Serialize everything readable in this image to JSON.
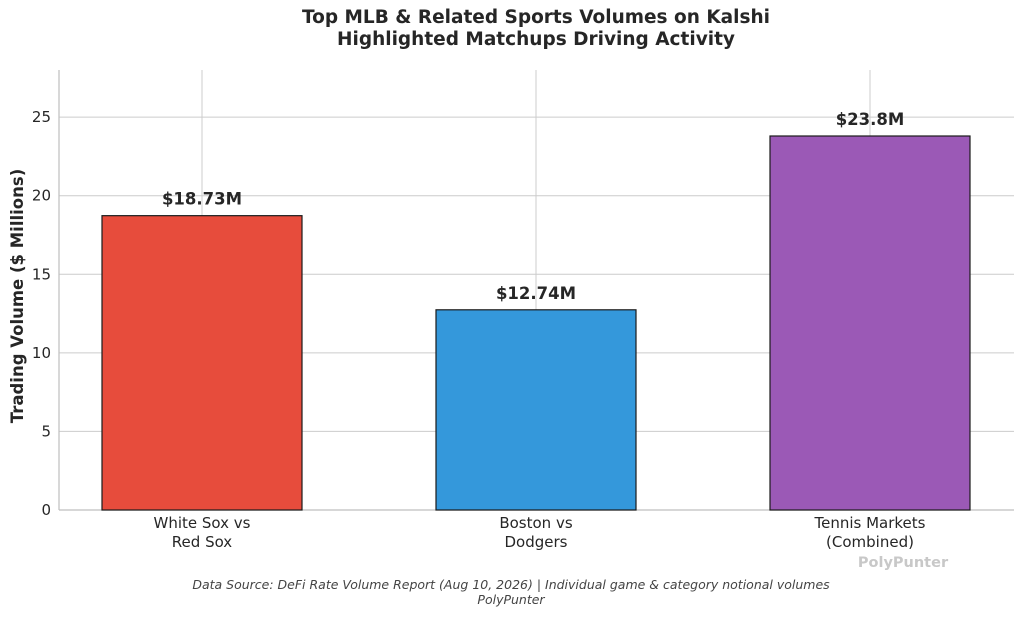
{
  "chart_data": {
    "type": "bar",
    "title_lines": [
      "Top MLB & Related Sports Volumes on Kalshi",
      "Highlighted Matchups Driving Activity"
    ],
    "xlabel": "",
    "ylabel": "Trading Volume ($ Millions)",
    "categories": [
      [
        "White Sox vs",
        "Red Sox"
      ],
      [
        "Boston vs",
        "Dodgers"
      ],
      [
        "Tennis Markets",
        "(Combined)"
      ]
    ],
    "values": [
      18.73,
      12.74,
      23.8
    ],
    "data_labels": [
      "$18.73M",
      "$12.74M",
      "$23.8M"
    ],
    "colors": [
      "#e74c3c",
      "#3498db",
      "#9b59b6"
    ],
    "ylim": [
      0,
      28
    ],
    "yticks": [
      0,
      5,
      10,
      15,
      20,
      25
    ],
    "grid": true,
    "watermark": "PolyPunter"
  },
  "footer": {
    "source": "Data Source: DeFi Rate Volume Report (Aug 10, 2026) | Individual game & category notional volumes",
    "credit": "PolyPunter"
  }
}
